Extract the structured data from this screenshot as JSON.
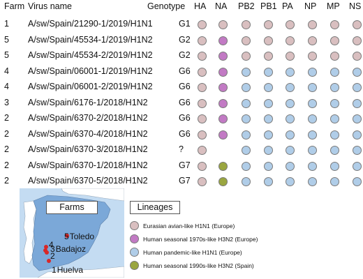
{
  "headers": {
    "farm": "Farm",
    "virus": "Virus name",
    "genotype": "Genotype",
    "segments": [
      "HA",
      "NA",
      "PB2",
      "PB1",
      "PA",
      "NP",
      "MP",
      "NS"
    ]
  },
  "colors": {
    "E": "#d9bfc0",
    "H70": "#c27ac4",
    "P": "#b0cde8",
    "H90": "#9aa640",
    "map_sea": "#c4dcf2",
    "map_land": "#ffffff",
    "spain_land": "#7ba8d8",
    "farm_marker": "#d92727"
  },
  "rows": [
    {
      "farm": "1",
      "virus": "A/sw/Spain/21290-1/2019/H1N1",
      "genotype": "G1",
      "segments": [
        "E",
        "E",
        "E",
        "E",
        "E",
        "E",
        "E",
        "E"
      ]
    },
    {
      "farm": "5",
      "virus": "A/sw/Spain/45534-1/2019/H1N2",
      "genotype": "G2",
      "segments": [
        "E",
        "H70",
        "E",
        "E",
        "E",
        "E",
        "E",
        "E"
      ]
    },
    {
      "farm": "5",
      "virus": "A/sw/Spain/45534-2/2019/H1N2",
      "genotype": "G2",
      "segments": [
        "E",
        "H70",
        "E",
        "E",
        "E",
        "E",
        "E",
        "E"
      ]
    },
    {
      "farm": "4",
      "virus": "A/sw/Spain/06001-1/2019/H1N2",
      "genotype": "G6",
      "segments": [
        "E",
        "H70",
        "P",
        "P",
        "P",
        "P",
        "P",
        "P"
      ]
    },
    {
      "farm": "4",
      "virus": "A/sw/Spain/06001-2/2019/H1N2",
      "genotype": "G6",
      "segments": [
        "E",
        "H70",
        "P",
        "P",
        "P",
        "P",
        "P",
        "P"
      ]
    },
    {
      "farm": "3",
      "virus": "A/sw/Spain/6176-1/2018/H1N2",
      "genotype": "G6",
      "segments": [
        "E",
        "H70",
        "P",
        "P",
        "P",
        "P",
        "P",
        "P"
      ]
    },
    {
      "farm": "2",
      "virus": "A/sw/Spain/6370-2/2018/H1N2",
      "genotype": "G6",
      "segments": [
        "E",
        "H70",
        "P",
        "P",
        "P",
        "P",
        "P",
        "P"
      ]
    },
    {
      "farm": "2",
      "virus": "A/sw/Spain/6370-4/2018/H1N2",
      "genotype": "G6",
      "segments": [
        "E",
        "H70",
        "P",
        "P",
        "P",
        "P",
        "P",
        "P"
      ]
    },
    {
      "farm": "2",
      "virus": "A/sw/Spain/6370-3/2018/H1N2",
      "genotype": "?",
      "segments": [
        "E",
        null,
        "P",
        "P",
        "P",
        "P",
        "P",
        "P"
      ]
    },
    {
      "farm": "2",
      "virus": "A/sw/Spain/6370-1/2018/H1N2",
      "genotype": "G7",
      "segments": [
        "E",
        "H90",
        "P",
        "P",
        "P",
        "P",
        "P",
        "P"
      ]
    },
    {
      "farm": "2",
      "virus": "A/sw/Spain/6370-5/2018/H1N2",
      "genotype": "G7",
      "segments": [
        "E",
        "H90",
        "P",
        "P",
        "P",
        "P",
        "P",
        "P"
      ]
    }
  ],
  "map": {
    "title": "Farms",
    "cities": [
      {
        "num": "5",
        "name": "Toledo"
      },
      {
        "num": "4",
        "name": ""
      },
      {
        "num": "3",
        "name": "Badajoz"
      },
      {
        "num": "2",
        "name": ""
      },
      {
        "num": "1",
        "name": "Huelva"
      }
    ]
  },
  "legend": {
    "title": "Lineages",
    "items": [
      {
        "key": "E",
        "label": "Eurasian avian-like H1N1 (Europe)"
      },
      {
        "key": "H70",
        "label": "Human seasonal 1970s-like H3N2 (Europe)"
      },
      {
        "key": "P",
        "label": "Human pandemic-like H1N1 (Europe)"
      },
      {
        "key": "H90",
        "label": "Human seasonal 1990s-like H3N2 (Spain)"
      }
    ]
  }
}
